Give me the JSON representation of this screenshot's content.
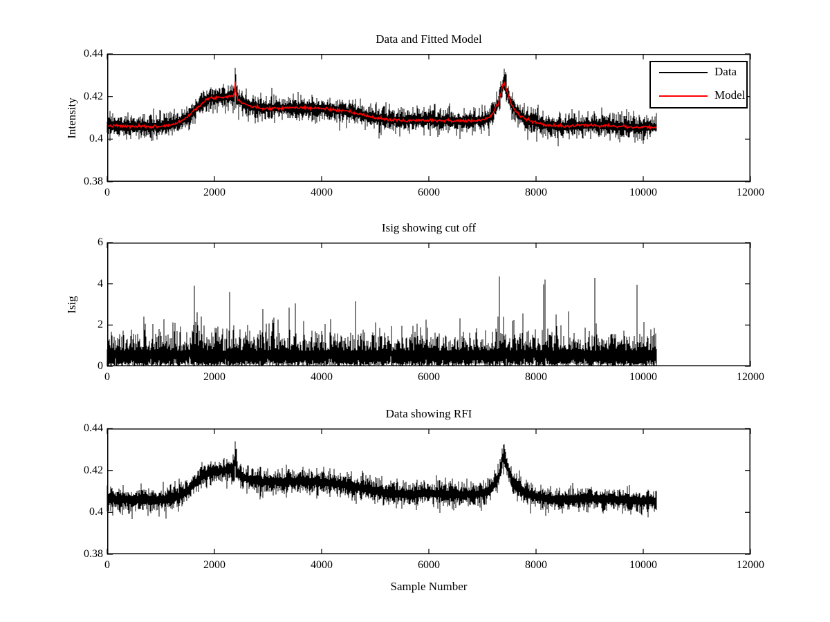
{
  "figure": {
    "background": "#ffffff",
    "data_color": "#000000",
    "model_color": "#ff0000"
  },
  "chart_data": [
    {
      "type": "line",
      "title": "Data and Fitted Model",
      "ylabel": "Intensity",
      "xlim": [
        0,
        12000
      ],
      "ylim": [
        0.38,
        0.44
      ],
      "xticks": [
        0,
        2000,
        4000,
        6000,
        8000,
        10000,
        12000
      ],
      "xtick_labels": [
        "0",
        "2000",
        "4000",
        "6000",
        "8000",
        "10000",
        "12000"
      ],
      "yticks": [
        0.38,
        0.4,
        0.42,
        0.44
      ],
      "ytick_labels": [
        "0.38",
        "0.4",
        "0.42",
        "0.44"
      ],
      "x_data_end": 10250,
      "grid": false,
      "legend": {
        "position": "northeast",
        "entries": [
          {
            "label": "Data",
            "color": "#000000"
          },
          {
            "label": "Model",
            "color": "#ff0000"
          }
        ]
      },
      "mean_anchors": {
        "x": [
          0,
          400,
          800,
          1100,
          1300,
          1500,
          1700,
          1900,
          2100,
          2250,
          2340,
          2375,
          2385,
          2400,
          2450,
          2550,
          2700,
          2900,
          3200,
          3500,
          3800,
          4100,
          4400,
          4700,
          5000,
          5300,
          5600,
          5900,
          6200,
          6500,
          6800,
          7000,
          7150,
          7300,
          7380,
          7410,
          7450,
          7550,
          7700,
          7850,
          8000,
          8200,
          8500,
          8800,
          9100,
          9400,
          9700,
          10000,
          10250
        ],
        "y": [
          0.4063,
          0.406,
          0.4058,
          0.4062,
          0.4075,
          0.4105,
          0.4155,
          0.4192,
          0.4197,
          0.42,
          0.4205,
          0.421,
          0.4278,
          0.4215,
          0.4185,
          0.4168,
          0.4152,
          0.4145,
          0.4146,
          0.4148,
          0.4147,
          0.4142,
          0.4133,
          0.4118,
          0.41,
          0.409,
          0.4086,
          0.409,
          0.4088,
          0.4086,
          0.4085,
          0.409,
          0.4105,
          0.417,
          0.4255,
          0.4265,
          0.423,
          0.4155,
          0.411,
          0.409,
          0.4077,
          0.4065,
          0.406,
          0.4064,
          0.4066,
          0.4063,
          0.4058,
          0.4055,
          0.4056
        ]
      },
      "rfi_spikes": [
        {
          "x": 2382,
          "peak": 0.4335
        },
        {
          "x": 7400,
          "peak": 0.433
        }
      ],
      "series": [
        {
          "name": "Data",
          "color": "#000000",
          "kind": "noisy-band",
          "seed": 101,
          "noise_base": 0.0014,
          "noise_sigma": 0.0026,
          "tail_prob": 0.025,
          "tail_extra": 0.0028
        },
        {
          "name": "Model",
          "color": "#ff0000",
          "kind": "model-line",
          "seed": 7,
          "jitter": 0.00035
        }
      ]
    },
    {
      "type": "line",
      "title": "Isig showing cut off",
      "ylabel": "Isig",
      "xlim": [
        0,
        12000
      ],
      "ylim": [
        0,
        6
      ],
      "xticks": [
        0,
        2000,
        4000,
        6000,
        8000,
        10000,
        12000
      ],
      "xtick_labels": [
        "0",
        "2000",
        "4000",
        "6000",
        "8000",
        "10000",
        "12000"
      ],
      "yticks": [
        0,
        2,
        4,
        6
      ],
      "ytick_labels": [
        "0",
        "2",
        "4",
        "6"
      ],
      "x_data_end": 10250,
      "grid": false,
      "series": [
        {
          "name": "Isig",
          "color": "#000000",
          "kind": "spiky",
          "seed": 303,
          "base": 0.75,
          "sigma": 0.55,
          "tail_prob": 0.02,
          "spikes": [
            {
              "x": 7320,
              "peak": 4.35
            },
            {
              "x": 8170,
              "peak": 4.2
            },
            {
              "x": 9880,
              "peak": 3.95
            },
            {
              "x": 1620,
              "peak": 3.9
            },
            {
              "x": 2290,
              "peak": 3.6
            }
          ]
        }
      ]
    },
    {
      "type": "line",
      "title": "Data showing RFI",
      "xlabel": "Sample Number",
      "xlim": [
        0,
        12000
      ],
      "ylim": [
        0.38,
        0.44
      ],
      "xticks": [
        0,
        2000,
        4000,
        6000,
        8000,
        10000,
        12000
      ],
      "xtick_labels": [
        "0",
        "2000",
        "4000",
        "6000",
        "8000",
        "10000",
        "12000"
      ],
      "yticks": [
        0.38,
        0.4,
        0.42,
        0.44
      ],
      "ytick_labels": [
        "0.38",
        "0.4",
        "0.42",
        "0.44"
      ],
      "x_data_end": 10250,
      "grid": false,
      "mean_anchors": {
        "x": [
          0,
          400,
          800,
          1100,
          1300,
          1500,
          1700,
          1900,
          2100,
          2250,
          2340,
          2375,
          2385,
          2400,
          2450,
          2550,
          2700,
          2900,
          3200,
          3500,
          3800,
          4100,
          4400,
          4700,
          5000,
          5300,
          5600,
          5900,
          6200,
          6500,
          6800,
          7000,
          7150,
          7300,
          7380,
          7410,
          7450,
          7550,
          7700,
          7850,
          8000,
          8200,
          8500,
          8800,
          9100,
          9400,
          9700,
          10000,
          10250
        ],
        "y": [
          0.4063,
          0.406,
          0.4058,
          0.4062,
          0.4075,
          0.4105,
          0.4155,
          0.4192,
          0.4197,
          0.42,
          0.4205,
          0.421,
          0.4278,
          0.4215,
          0.4185,
          0.4168,
          0.4152,
          0.4145,
          0.4146,
          0.4148,
          0.4147,
          0.4142,
          0.4133,
          0.4118,
          0.41,
          0.409,
          0.4086,
          0.409,
          0.4088,
          0.4086,
          0.4085,
          0.409,
          0.4105,
          0.417,
          0.4255,
          0.4265,
          0.423,
          0.4155,
          0.411,
          0.409,
          0.4077,
          0.4065,
          0.406,
          0.4064,
          0.4066,
          0.4063,
          0.4058,
          0.4055,
          0.4056
        ]
      },
      "rfi_spikes": [
        {
          "x": 2382,
          "peak": 0.433
        },
        {
          "x": 7400,
          "peak": 0.4325
        }
      ],
      "series": [
        {
          "name": "Data",
          "color": "#000000",
          "kind": "noisy-band",
          "seed": 202,
          "noise_base": 0.0014,
          "noise_sigma": 0.0026,
          "tail_prob": 0.025,
          "tail_extra": 0.0028
        }
      ]
    }
  ]
}
